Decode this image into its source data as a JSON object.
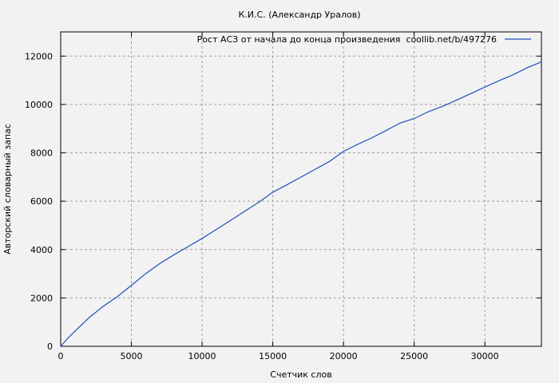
{
  "chart_data": {
    "type": "line",
    "title": "К.И.С. (Александр Уралов)",
    "xlabel": "Счетчик слов",
    "ylabel": "Авторский словарный запас",
    "xlim": [
      0,
      34000
    ],
    "ylim": [
      0,
      13000
    ],
    "xticks": [
      0,
      5000,
      10000,
      15000,
      20000,
      25000,
      30000
    ],
    "yticks": [
      0,
      2000,
      4000,
      6000,
      8000,
      10000,
      12000
    ],
    "grid": true,
    "legend_placement": "top-right",
    "series": [
      {
        "name": "Рост АСЗ от начала до конца произведения  coollib.net/b/497276",
        "color": "#1f4fbf",
        "x": [
          0,
          500,
          1000,
          2000,
          3000,
          4000,
          5000,
          6000,
          7000,
          8000,
          9000,
          10000,
          11000,
          12000,
          13000,
          14000,
          15000,
          16000,
          17000,
          18000,
          19000,
          20000,
          21000,
          22000,
          23000,
          24000,
          25000,
          26000,
          27000,
          28000,
          29000,
          30000,
          31000,
          32000,
          33000,
          34000
        ],
        "y": [
          0,
          330,
          620,
          1180,
          1650,
          2050,
          2520,
          3000,
          3420,
          3780,
          4120,
          4460,
          4830,
          5200,
          5580,
          5950,
          6370,
          6680,
          7000,
          7320,
          7640,
          8060,
          8350,
          8620,
          8920,
          9230,
          9420,
          9700,
          9920,
          10180,
          10450,
          10720,
          10980,
          11230,
          11520,
          11760
        ]
      }
    ]
  }
}
